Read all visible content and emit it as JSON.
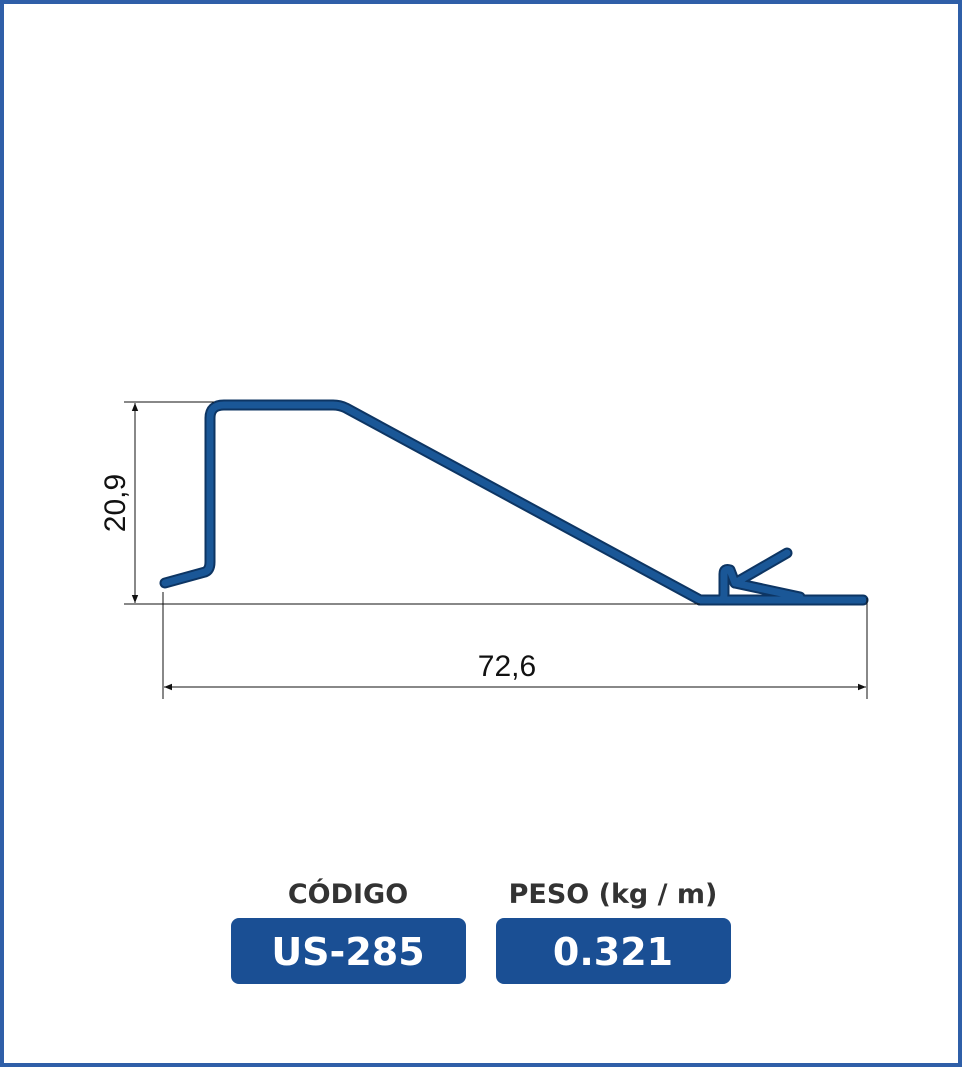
{
  "dimensions": {
    "height": "20,9",
    "width": "72,6"
  },
  "info": {
    "code_label": "CÓDIGO",
    "code": "US-285",
    "weight_label": "PESO (kg / m)",
    "weight": "0.321"
  }
}
